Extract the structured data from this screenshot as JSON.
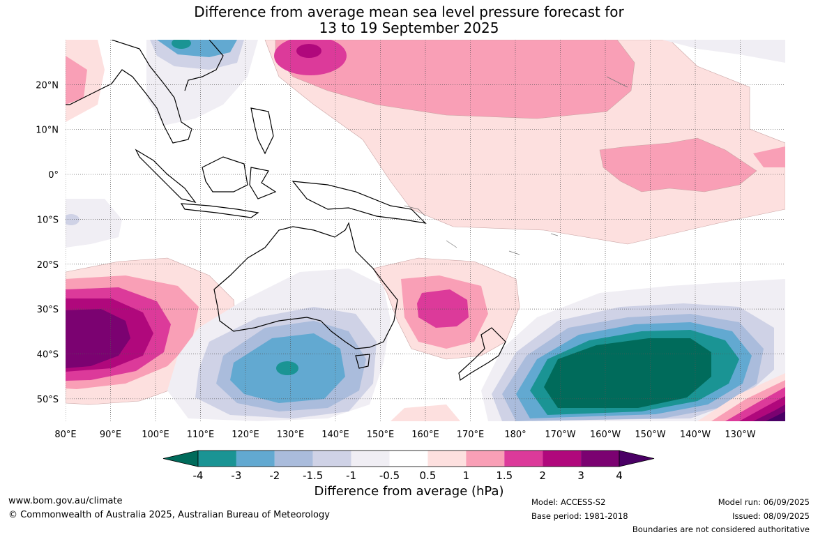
{
  "title": {
    "line1": "Difference from average mean sea level pressure forecast for",
    "line2": "13 to 19 September 2025"
  },
  "map": {
    "lon_labels": [
      "80°E",
      "90°E",
      "100°E",
      "110°E",
      "120°E",
      "130°E",
      "140°E",
      "150°E",
      "160°E",
      "170°E",
      "180°",
      "170°W",
      "160°W",
      "150°W",
      "140°W",
      "130°W"
    ],
    "lat_labels": [
      "20°N",
      "10°N",
      "0°",
      "10°S",
      "20°S",
      "30°S",
      "40°S",
      "50°S"
    ],
    "lon_range": [
      80,
      240
    ],
    "lat_range": [
      -55,
      30
    ],
    "grid": true
  },
  "colorbar": {
    "colors": [
      "#006b5b",
      "#1a9494",
      "#62a9d1",
      "#aabcdc",
      "#cfd2e6",
      "#f0eef4",
      "#ffffff",
      "#fde0df",
      "#f99fb6",
      "#dc3a9a",
      "#b0087c",
      "#7b0271",
      "#4a0065"
    ],
    "tick_labels": [
      "-4",
      "-3",
      "-2",
      "-1.5",
      "-1",
      "-0.5",
      "0.5",
      "1",
      "1.5",
      "2",
      "3",
      "4"
    ],
    "title": "Difference from average (hPa)"
  },
  "footer": {
    "website": "www.bom.gov.au/climate",
    "copyright": "© Commonwealth of Australia 2025, Australian Bureau of Meteorology",
    "model": "Model: ACCESS-S2",
    "base_period": "Base period: 1981-2018",
    "model_run": "Model run: 06/09/2025",
    "issued": "Issued: 08/09/2025",
    "disclaimer": "Boundaries are not considered authoritative"
  }
}
